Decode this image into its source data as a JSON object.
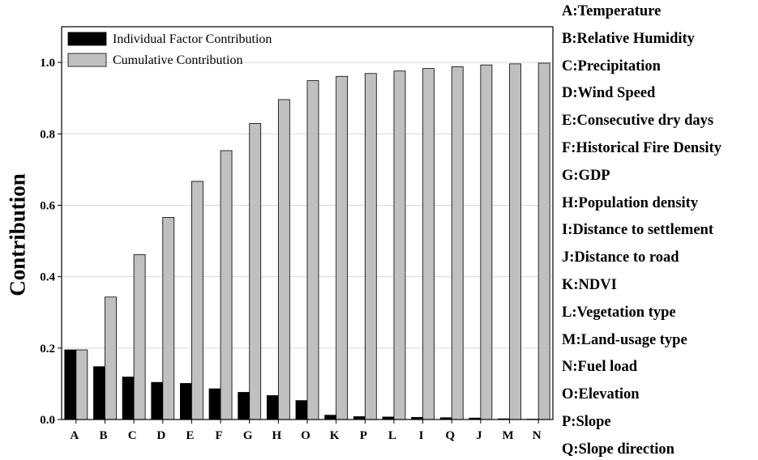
{
  "chart_data": {
    "type": "bar",
    "ylabel": "Contribution",
    "xlabel": "",
    "ylim": [
      0,
      1.1
    ],
    "yticks": [
      "0.0",
      "0.2",
      "0.4",
      "0.6",
      "0.8",
      "1.0"
    ],
    "grid": "horizontal",
    "legend_placement": "top-left",
    "categories": [
      "A",
      "B",
      "C",
      "D",
      "E",
      "F",
      "G",
      "H",
      "O",
      "K",
      "P",
      "L",
      "I",
      "Q",
      "J",
      "M",
      "N"
    ],
    "series": [
      {
        "name": "Individual Factor Contribution",
        "color": "#000000",
        "values": [
          0.195,
          0.148,
          0.119,
          0.104,
          0.101,
          0.086,
          0.076,
          0.067,
          0.053,
          0.012,
          0.008,
          0.007,
          0.006,
          0.005,
          0.004,
          0.002,
          0.001
        ]
      },
      {
        "name": "Cumulative Contribution",
        "color": "#c0c0c0",
        "values": [
          0.195,
          0.343,
          0.462,
          0.566,
          0.667,
          0.753,
          0.829,
          0.896,
          0.949,
          0.961,
          0.969,
          0.976,
          0.983,
          0.988,
          0.993,
          0.996,
          0.998
        ]
      }
    ]
  },
  "key": [
    "A:Temperature",
    "B:Relative Humidity",
    "C:Precipitation",
    "D:Wind Speed",
    "E:Consecutive dry days",
    "F:Historical Fire Density",
    "G:GDP",
    "H:Population density",
    "I:Distance to settlement",
    "J:Distance to road",
    "K:NDVI",
    "L:Vegetation type",
    "M:Land-usage type",
    "N:Fuel load",
    "O:Elevation",
    "P:Slope",
    "Q:Slope direction"
  ]
}
